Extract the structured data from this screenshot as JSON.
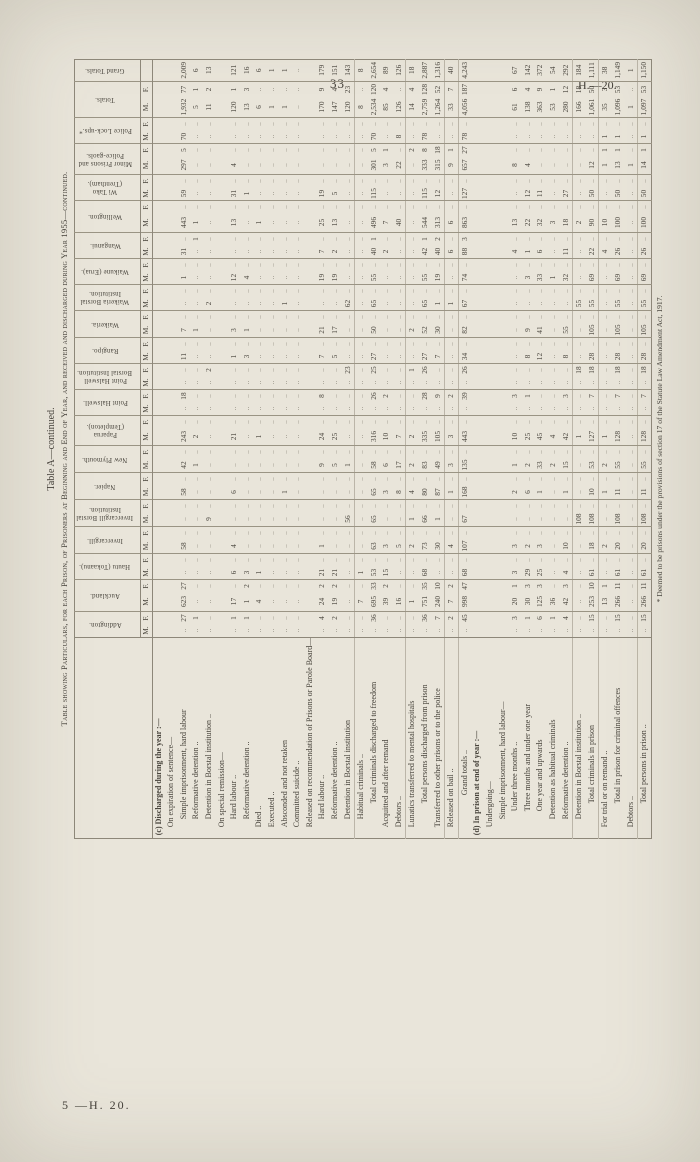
{
  "page": {
    "number": "33",
    "doc_ref": "H.—20.",
    "signature": "5 —H. 20."
  },
  "title": {
    "line1": "Table A—continued.",
    "line2": "Table showing Particulars, for each Prison, of Prisoners at Beginning and End of Year, and received and discharged during Year 1955—continued."
  },
  "footnote": "* Deemed to be prisons under the provisions of section 17 of the Statute Law Amendment Act, 1917.",
  "table": {
    "columns": [
      {
        "name": "Addington.",
        "sub": [
          "M.",
          "F."
        ]
      },
      {
        "name": "Auckland.",
        "sub": [
          "M.",
          "F."
        ]
      },
      {
        "name": "Hautu (Tokaanu).",
        "sub": [
          "M.",
          "F."
        ]
      },
      {
        "name": "Invercargill.",
        "sub": [
          "M.",
          "F."
        ]
      },
      {
        "name": "Invercargill Borstal Institution.",
        "sub": [
          "M.",
          "F."
        ]
      },
      {
        "name": "Napier.",
        "sub": [
          "M.",
          "F."
        ]
      },
      {
        "name": "New Plymouth.",
        "sub": [
          "M.",
          "F."
        ]
      },
      {
        "name": "Paparua (Templeton).",
        "sub": [
          "M.",
          "F."
        ]
      },
      {
        "name": "Point Halswell.",
        "sub": [
          "M.",
          "F."
        ]
      },
      {
        "name": "Point Halswell Borstal Institution.",
        "sub": [
          "M.",
          "F."
        ]
      },
      {
        "name": "Rangipo.",
        "sub": [
          "M.",
          "F."
        ]
      },
      {
        "name": "Waikeria.",
        "sub": [
          "M.",
          "F."
        ]
      },
      {
        "name": "Waikeria Borstal Institution.",
        "sub": [
          "M.",
          "F."
        ]
      },
      {
        "name": "Waikune (Erua).",
        "sub": [
          "M.",
          "F."
        ]
      },
      {
        "name": "Wanganui.",
        "sub": [
          "M.",
          "F."
        ]
      },
      {
        "name": "Wellington.",
        "sub": [
          "M.",
          "F."
        ]
      },
      {
        "name": "Wi Tako (Trentham).",
        "sub": [
          "M.",
          "F."
        ]
      },
      {
        "name": "Minor Prisons and Police-gaols.",
        "sub": [
          "M.",
          "F."
        ]
      },
      {
        "name": "Police Lock-ups.*",
        "sub": [
          "M.",
          "F."
        ]
      },
      {
        "name": "Totals.",
        "sub": [
          "M.",
          "F."
        ]
      },
      {
        "name": "Grand Totals.",
        "sub": [
          ""
        ]
      }
    ],
    "col_widths": {
      "default": 13,
      "stub": 190,
      "2": 19,
      "6": 14,
      "8": 14,
      "10": 14,
      "12": 14,
      "14": 17,
      "22": 14,
      "30": 19,
      "34": 18,
      "38": 20,
      "39": 16,
      "40": 22
    },
    "rows": [
      {
        "label": "(c) Discharged during the year :—",
        "indent": 0,
        "type": "section"
      },
      {
        "label": "On expiration of sentence—",
        "indent": 1,
        "type": "group"
      },
      {
        "label": "Simple imprisonment, hard labour",
        "indent": 2,
        "type": "data",
        "cells": {
          "1": "27",
          "2": "623",
          "3": "27",
          "6": "58",
          "10": "58",
          "12": "42",
          "14": "243",
          "17": "18",
          "20": "11",
          "22": "7",
          "26": "1",
          "28": "31",
          "30": "443",
          "32": "59",
          "34": "297",
          "35": "5",
          "36": "70",
          "38": "1,932",
          "39": "77",
          "40": "2,009"
        }
      },
      {
        "label": "Reformative detention ..",
        "indent": 2,
        "type": "data",
        "cells": {
          "1": "1",
          "12": "1",
          "14": "2",
          "22": "1",
          "29": "1",
          "30": "1",
          "38": "5",
          "39": "1",
          "40": "6"
        }
      },
      {
        "label": "Detention in Borstal institution ..",
        "indent": 2,
        "type": "data",
        "cells": {
          "8": "9",
          "19": "2",
          "24": "2",
          "38": "11",
          "39": "2",
          "40": "13"
        }
      },
      {
        "label": "On special remission—",
        "indent": 1,
        "type": "group"
      },
      {
        "label": "Hard labour ..",
        "indent": 2,
        "type": "data",
        "cells": {
          "1": "1",
          "2": "17",
          "4": "6",
          "6": "4",
          "10": "6",
          "14": "21",
          "20": "1",
          "22": "3",
          "26": "12",
          "30": "13",
          "32": "31",
          "34": "4",
          "38": "120",
          "39": "1",
          "40": "121"
        }
      },
      {
        "label": "Reformative detention ..",
        "indent": 2,
        "type": "data",
        "cells": {
          "1": "1",
          "2": "1",
          "3": "2",
          "4": "3",
          "20": "3",
          "22": "1",
          "26": "4",
          "32": "1",
          "38": "13",
          "39": "3",
          "40": "16"
        }
      },
      {
        "label": "Died ..",
        "indent": 1,
        "type": "data",
        "cells": {
          "2": "4",
          "4": "1",
          "14": "1",
          "30": "1",
          "38": "6",
          "40": "6"
        }
      },
      {
        "label": "Executed ..",
        "indent": 1,
        "type": "data",
        "cells": {
          "38": "1",
          "40": "1"
        }
      },
      {
        "label": "Absconded and not retaken",
        "indent": 1,
        "type": "data",
        "cells": {
          "10": "1",
          "24": "1",
          "38": "1",
          "40": "1"
        }
      },
      {
        "label": "Committed suicide ..",
        "indent": 1,
        "type": "data",
        "cells": {}
      },
      {
        "label": "Released on recommendation of Prisons or Parole Board—",
        "indent": 1,
        "type": "group"
      },
      {
        "label": "Hard labour ..",
        "indent": 2,
        "type": "data",
        "cells": {
          "1": "4",
          "2": "24",
          "3": "2",
          "4": "21",
          "6": "1",
          "12": "9",
          "14": "24",
          "17": "8",
          "20": "7",
          "22": "21",
          "26": "19",
          "28": "7",
          "30": "25",
          "32": "19",
          "38": "170",
          "39": "9",
          "40": "179"
        }
      },
      {
        "label": "Reformative detention ..",
        "indent": 2,
        "type": "data",
        "cells": {
          "1": "2",
          "2": "19",
          "3": "2",
          "4": "21",
          "12": "5",
          "14": "25",
          "20": "5",
          "22": "17",
          "26": "19",
          "28": "2",
          "30": "13",
          "32": "5",
          "38": "147",
          "39": "4",
          "40": "151"
        }
      },
      {
        "label": "Detention in Borstal institution",
        "indent": 2,
        "type": "data",
        "cells": {
          "8": "56",
          "12": "1",
          "19": "23",
          "24": "62",
          "38": "120",
          "39": "23",
          "40": "143"
        }
      },
      {
        "label": "Habitual criminals ..",
        "indent": 2,
        "type": "data",
        "cells": {
          "2": "7",
          "4": "1",
          "38": "8",
          "40": "8"
        }
      },
      {
        "label": "Total criminals discharged to freedom",
        "indent": 4,
        "type": "total",
        "cells": {
          "1": "36",
          "2": "695",
          "3": "33",
          "4": "53",
          "6": "63",
          "8": "65",
          "10": "65",
          "12": "58",
          "14": "316",
          "17": "26",
          "19": "25",
          "20": "27",
          "22": "50",
          "24": "65",
          "26": "55",
          "28": "40",
          "29": "1",
          "30": "496",
          "32": "115",
          "34": "301",
          "35": "5",
          "36": "70",
          "38": "2,534",
          "39": "120",
          "40": "2,654"
        }
      },
      {
        "label": "Acquitted and after remand",
        "indent": 1,
        "type": "data",
        "cells": {
          "2": "39",
          "3": "2",
          "4": "15",
          "6": "3",
          "10": "3",
          "12": "6",
          "14": "10",
          "17": "2",
          "28": "2",
          "30": "7",
          "34": "3",
          "35": "1",
          "38": "85",
          "39": "4",
          "40": "89"
        }
      },
      {
        "label": "Debtors ..",
        "indent": 1,
        "type": "data",
        "cells": {
          "2": "16",
          "6": "5",
          "10": "8",
          "12": "17",
          "14": "7",
          "30": "40",
          "34": "22",
          "36": "8",
          "38": "126",
          "40": "126"
        }
      },
      {
        "label": "Lunatics transferred to mental hospitals",
        "indent": 1,
        "type": "data",
        "cells": {
          "2": "1",
          "6": "2",
          "8": "1",
          "10": "4",
          "12": "2",
          "14": "2",
          "19": "1",
          "22": "2",
          "35": "2",
          "38": "14",
          "39": "4",
          "40": "18"
        }
      },
      {
        "label": "Total persons discharged from prison",
        "indent": 4,
        "type": "total",
        "cells": {
          "1": "36",
          "2": "751",
          "3": "35",
          "4": "68",
          "6": "73",
          "8": "66",
          "10": "80",
          "12": "83",
          "14": "335",
          "17": "28",
          "19": "26",
          "20": "27",
          "22": "52",
          "24": "65",
          "26": "55",
          "28": "42",
          "29": "1",
          "30": "544",
          "32": "115",
          "34": "333",
          "35": "8",
          "36": "78",
          "38": "2,759",
          "39": "128",
          "40": "2,887"
        }
      },
      {
        "label": "Transferred to other prisons or to the police",
        "indent": 1,
        "type": "data",
        "cells": {
          "1": "7",
          "2": "240",
          "3": "10",
          "6": "30",
          "8": "1",
          "10": "87",
          "12": "49",
          "14": "105",
          "17": "9",
          "20": "7",
          "22": "30",
          "24": "1",
          "26": "19",
          "28": "40",
          "29": "2",
          "30": "313",
          "32": "12",
          "34": "315",
          "35": "18",
          "38": "1,264",
          "39": "52",
          "40": "1,316"
        }
      },
      {
        "label": "Released on bail ..",
        "indent": 1,
        "type": "data",
        "cells": {
          "1": "2",
          "2": "7",
          "3": "2",
          "6": "4",
          "10": "1",
          "12": "3",
          "14": "3",
          "17": "2",
          "24": "1",
          "28": "6",
          "30": "6",
          "34": "9",
          "35": "1",
          "38": "33",
          "39": "7",
          "40": "40"
        }
      },
      {
        "label": "Grand totals ..",
        "indent": 5,
        "type": "total",
        "cells": {
          "1": "45",
          "2": "998",
          "3": "47",
          "4": "68",
          "6": "107",
          "8": "67",
          "10": "168",
          "12": "135",
          "14": "443",
          "17": "39",
          "19": "26",
          "20": "34",
          "22": "82",
          "24": "67",
          "26": "74",
          "28": "88",
          "29": "3",
          "30": "863",
          "32": "127",
          "34": "657",
          "35": "27",
          "36": "78",
          "38": "4,056",
          "39": "187",
          "40": "4,243"
        }
      },
      {
        "label": "(d) In prison at end of year :—",
        "indent": 0,
        "type": "section"
      },
      {
        "label": "Undergoing—",
        "indent": 1,
        "type": "group"
      },
      {
        "label": "Simple imprisonment, hard labour—",
        "indent": 2,
        "type": "group"
      },
      {
        "label": "Under three months ..",
        "indent": 3,
        "type": "data",
        "cells": {
          "1": "3",
          "2": "20",
          "3": "1",
          "4": "3",
          "6": "3",
          "10": "2",
          "12": "1",
          "14": "10",
          "17": "3",
          "28": "4",
          "30": "13",
          "34": "8",
          "38": "61",
          "39": "6",
          "40": "67"
        }
      },
      {
        "label": "Three months and under one year",
        "indent": 3,
        "type": "data",
        "cells": {
          "1": "1",
          "2": "30",
          "3": "3",
          "4": "29",
          "6": "2",
          "10": "6",
          "12": "2",
          "14": "25",
          "17": "1",
          "20": "8",
          "22": "9",
          "26": "3",
          "28": "1",
          "30": "22",
          "32": "12",
          "34": "4",
          "38": "138",
          "39": "4",
          "40": "142"
        }
      },
      {
        "label": "One year and upwards",
        "indent": 3,
        "type": "data",
        "cells": {
          "1": "6",
          "2": "125",
          "3": "3",
          "4": "25",
          "6": "3",
          "10": "1",
          "12": "33",
          "14": "45",
          "20": "12",
          "22": "41",
          "26": "33",
          "28": "6",
          "30": "32",
          "32": "11",
          "38": "363",
          "39": "9",
          "40": "372"
        }
      },
      {
        "label": "Detention as habitual criminals",
        "indent": 2,
        "type": "data",
        "cells": {
          "1": "1",
          "2": "36",
          "12": "2",
          "14": "4",
          "26": "1",
          "30": "3",
          "38": "53",
          "39": "1",
          "40": "54"
        }
      },
      {
        "label": "Reformative detention ..",
        "indent": 2,
        "type": "data",
        "cells": {
          "1": "4",
          "2": "42",
          "3": "3",
          "4": "4",
          "6": "10",
          "10": "1",
          "12": "15",
          "14": "42",
          "17": "3",
          "20": "8",
          "22": "55",
          "26": "32",
          "28": "11",
          "30": "18",
          "32": "27",
          "38": "280",
          "39": "12",
          "40": "292"
        }
      },
      {
        "label": "Detention in Borstal institution ..",
        "indent": 2,
        "type": "data",
        "cells": {
          "8": "108",
          "14": "1",
          "19": "18",
          "24": "55",
          "30": "2",
          "38": "166",
          "39": "18",
          "40": "184"
        }
      },
      {
        "label": "Total criminals in prison",
        "indent": 4,
        "type": "total",
        "cells": {
          "1": "15",
          "2": "253",
          "3": "10",
          "4": "61",
          "6": "18",
          "8": "108",
          "10": "10",
          "12": "53",
          "14": "127",
          "17": "7",
          "19": "18",
          "20": "28",
          "22": "105",
          "24": "55",
          "26": "69",
          "28": "22",
          "30": "90",
          "32": "50",
          "34": "12",
          "38": "1,061",
          "39": "50",
          "40": "1,111"
        }
      },
      {
        "label": "For trial or on remand ..",
        "indent": 1,
        "type": "data",
        "cells": {
          "2": "13",
          "3": "1",
          "6": "2",
          "10": "1",
          "12": "2",
          "14": "1",
          "28": "4",
          "30": "10",
          "34": "1",
          "35": "1",
          "36": "1",
          "38": "35",
          "39": "3",
          "40": "38"
        }
      },
      {
        "label": "Total in prison for criminal offences",
        "indent": 4,
        "type": "total",
        "cells": {
          "1": "15",
          "2": "266",
          "3": "11",
          "4": "61",
          "6": "20",
          "8": "108",
          "10": "11",
          "12": "55",
          "14": "128",
          "17": "7",
          "19": "18",
          "20": "28",
          "22": "105",
          "24": "55",
          "26": "69",
          "28": "26",
          "30": "100",
          "32": "50",
          "34": "13",
          "35": "1",
          "36": "1",
          "38": "1,096",
          "39": "53",
          "40": "1,149"
        }
      },
      {
        "label": "Debtors ..",
        "indent": 1,
        "type": "data",
        "cells": {
          "34": "1",
          "38": "1",
          "40": "1"
        }
      },
      {
        "label": "Total persons in prison ..",
        "indent": 4,
        "type": "total",
        "cells": {
          "1": "15",
          "2": "266",
          "3": "11",
          "4": "61",
          "6": "20",
          "8": "108",
          "10": "11",
          "12": "55",
          "14": "128",
          "17": "7",
          "19": "18",
          "20": "28",
          "22": "105",
          "24": "55",
          "26": "69",
          "28": "26",
          "30": "100",
          "32": "50",
          "34": "14",
          "35": "1",
          "36": "1",
          "38": "1,097",
          "39": "53",
          "40": "1,150"
        }
      }
    ],
    "rule_rows": [
      16,
      20,
      23,
      24,
      33,
      35,
      38
    ],
    "blank_marker": "..",
    "ink_color": "#47433b",
    "rule_color": "#8d8779",
    "paper_color": "#e9e5da"
  }
}
